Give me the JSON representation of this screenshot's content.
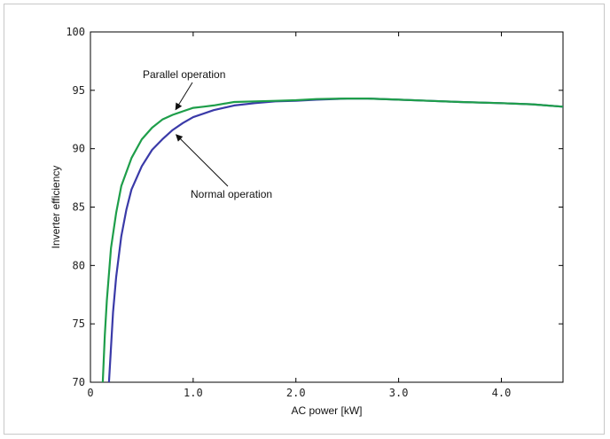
{
  "chart_data": {
    "type": "line",
    "title": "",
    "xlabel": "AC power [kW]",
    "ylabel": "Inverter efficiency",
    "xlim": [
      0,
      4.6
    ],
    "ylim": [
      70,
      100
    ],
    "x_ticks": [
      0,
      1,
      2,
      3,
      4
    ],
    "x_tick_labels": [
      "0",
      "1.0",
      "2.0",
      "3.0",
      "4.0"
    ],
    "y_ticks": [
      70,
      75,
      80,
      85,
      90,
      95,
      100
    ],
    "y_tick_labels": [
      "70",
      "75",
      "80",
      "85",
      "90",
      "95",
      "100"
    ],
    "grid": false,
    "series": [
      {
        "label": "Normal operation",
        "color": "#3a3aa8",
        "x": [
          0.18,
          0.2,
          0.22,
          0.25,
          0.3,
          0.35,
          0.4,
          0.5,
          0.6,
          0.7,
          0.8,
          0.9,
          1.0,
          1.2,
          1.4,
          1.6,
          1.8,
          2.0,
          2.2,
          2.5,
          2.7,
          3.0,
          3.3,
          3.6,
          4.0,
          4.3,
          4.6
        ],
        "y": [
          70.0,
          73.0,
          76.0,
          79.0,
          82.5,
          84.8,
          86.5,
          88.5,
          89.9,
          90.8,
          91.6,
          92.2,
          92.7,
          93.3,
          93.7,
          93.9,
          94.05,
          94.1,
          94.2,
          94.3,
          94.3,
          94.2,
          94.1,
          94.0,
          93.9,
          93.8,
          93.6
        ]
      },
      {
        "label": "Parallel operation",
        "color": "#1e9e4a",
        "x": [
          0.12,
          0.14,
          0.16,
          0.2,
          0.25,
          0.3,
          0.4,
          0.5,
          0.6,
          0.7,
          0.8,
          0.9,
          1.0,
          1.1,
          1.2,
          1.4,
          1.6,
          1.8,
          2.0,
          2.2,
          2.5,
          2.7,
          3.0,
          3.3,
          3.6,
          4.0,
          4.3,
          4.6
        ],
        "y": [
          70.0,
          74.0,
          77.0,
          81.5,
          84.5,
          86.8,
          89.2,
          90.8,
          91.8,
          92.5,
          92.9,
          93.2,
          93.5,
          93.6,
          93.7,
          94.0,
          94.05,
          94.1,
          94.15,
          94.25,
          94.3,
          94.3,
          94.2,
          94.1,
          94.0,
          93.9,
          93.8,
          93.6
        ]
      }
    ],
    "annotations": [
      {
        "text": "Parallel operation",
        "arrow_to": [
          0.83,
          93.2
        ]
      },
      {
        "text": "Normal operation",
        "arrow_to": [
          0.8,
          91.5
        ]
      }
    ]
  }
}
